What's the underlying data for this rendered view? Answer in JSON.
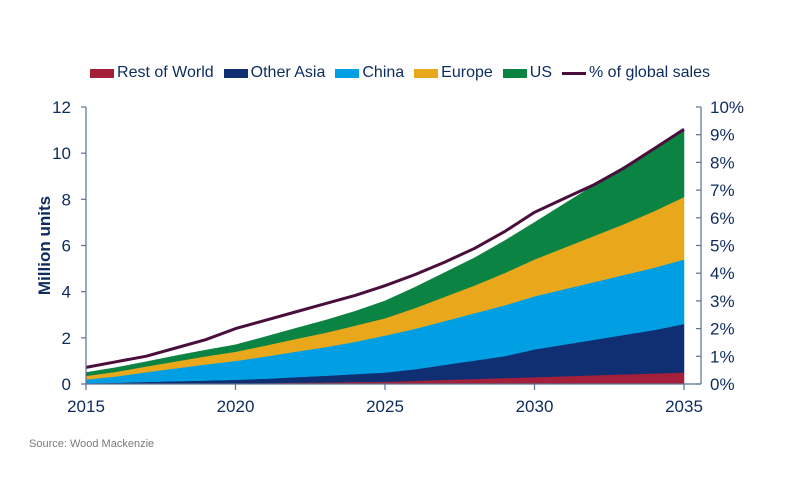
{
  "source": "Source: Wood Mackenzie",
  "chart_data": {
    "type": "area",
    "stacked": true,
    "title": "",
    "xlabel": "",
    "ylabel": "Million units",
    "y2label": "",
    "x": [
      2015,
      2016,
      2017,
      2018,
      2019,
      2020,
      2021,
      2022,
      2023,
      2024,
      2025,
      2026,
      2027,
      2028,
      2029,
      2030,
      2031,
      2032,
      2033,
      2034,
      2035
    ],
    "xticks": [
      "2015",
      "2020",
      "2025",
      "2030",
      "2035"
    ],
    "xtick_values": [
      2015,
      2020,
      2025,
      2030,
      2035
    ],
    "ylim": [
      0,
      12
    ],
    "yticks": [
      "0",
      "2",
      "4",
      "6",
      "8",
      "10",
      "12"
    ],
    "ytick_values": [
      0,
      2,
      4,
      6,
      8,
      10,
      12
    ],
    "y2lim": [
      0,
      10
    ],
    "y2ticks": [
      "0%",
      "1%",
      "2%",
      "3%",
      "4%",
      "5%",
      "6%",
      "7%",
      "8%",
      "9%",
      "10%"
    ],
    "y2tick_values": [
      0,
      1,
      2,
      3,
      4,
      5,
      6,
      7,
      8,
      9,
      10
    ],
    "grid": false,
    "legend_position": "top-center",
    "series": [
      {
        "name": "Rest of World",
        "color": "#a31f3a",
        "axis": "left",
        "values": [
          0.01,
          0.01,
          0.02,
          0.02,
          0.03,
          0.03,
          0.04,
          0.06,
          0.07,
          0.09,
          0.1,
          0.14,
          0.18,
          0.22,
          0.26,
          0.3,
          0.34,
          0.38,
          0.42,
          0.46,
          0.5
        ]
      },
      {
        "name": "Other Asia",
        "color": "#0f2f72",
        "axis": "left",
        "values": [
          0.02,
          0.04,
          0.07,
          0.1,
          0.12,
          0.15,
          0.19,
          0.24,
          0.29,
          0.34,
          0.4,
          0.5,
          0.65,
          0.8,
          0.95,
          1.2,
          1.37,
          1.54,
          1.71,
          1.88,
          2.1
        ]
      },
      {
        "name": "China",
        "color": "#009fe3",
        "axis": "left",
        "values": [
          0.17,
          0.28,
          0.42,
          0.56,
          0.7,
          0.82,
          0.96,
          1.1,
          1.24,
          1.4,
          1.6,
          1.75,
          1.9,
          2.05,
          2.2,
          2.3,
          2.4,
          2.5,
          2.6,
          2.7,
          2.8
        ]
      },
      {
        "name": "Europe",
        "color": "#e9a81b",
        "axis": "left",
        "values": [
          0.15,
          0.2,
          0.25,
          0.3,
          0.35,
          0.4,
          0.48,
          0.55,
          0.62,
          0.7,
          0.75,
          0.9,
          1.05,
          1.2,
          1.4,
          1.6,
          1.8,
          2.0,
          2.2,
          2.45,
          2.7
        ]
      },
      {
        "name": "US",
        "color": "#0b8343",
        "axis": "left",
        "values": [
          0.15,
          0.18,
          0.2,
          0.24,
          0.27,
          0.3,
          0.38,
          0.46,
          0.54,
          0.62,
          0.75,
          0.9,
          1.05,
          1.2,
          1.4,
          1.6,
          1.9,
          2.2,
          2.5,
          2.7,
          2.9
        ]
      }
    ],
    "line_series": {
      "name": "% of global sales",
      "color": "#4a0e3c",
      "axis": "right",
      "values": [
        0.6,
        0.8,
        1.0,
        1.3,
        1.6,
        2.0,
        2.3,
        2.6,
        2.9,
        3.2,
        3.55,
        3.95,
        4.4,
        4.9,
        5.5,
        6.2,
        6.7,
        7.2,
        7.8,
        8.5,
        9.2
      ]
    }
  }
}
